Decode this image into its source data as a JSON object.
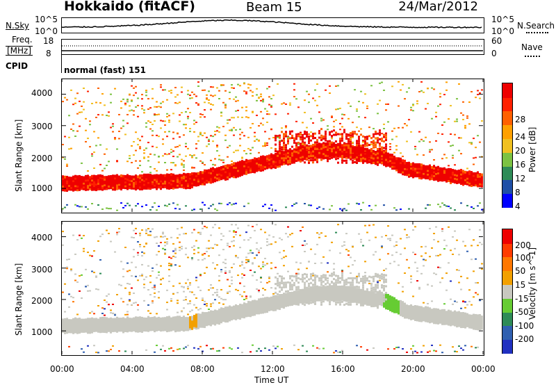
{
  "header": {
    "station": "Hokkaido (fitACF)",
    "beam": "Beam 15",
    "date": "24/Mar/2012"
  },
  "top_strip": {
    "nsky_label": "N.Sky",
    "nsearch_label": "N.Search",
    "nsky_ticks": [
      "10^5",
      "10^0"
    ],
    "nsearch_ticks": [
      "10^5",
      "10^0"
    ],
    "freq_label_1": "Freq.",
    "freq_label_2": "[MHz]",
    "freq_ticks": [
      "18",
      "8"
    ],
    "nave_label": "Nave",
    "nave_ticks": [
      "60",
      "0"
    ],
    "cpid_label": "CPID",
    "cpid_text": "normal (fast) 151"
  },
  "colors": {
    "power_scale": [
      "#0000ff",
      "#1f4fa6",
      "#2e8b57",
      "#7cc242",
      "#f0c020",
      "#ffa000",
      "#ff6000",
      "#ff2000",
      "#ee0000"
    ],
    "velocity_scale": [
      "#2030c0",
      "#3060b0",
      "#2e8b57",
      "#66cc33",
      "#c8c8c0",
      "#f2a000",
      "#ff7700",
      "#ff3b00",
      "#ee0000"
    ]
  },
  "chart_data": [
    {
      "type": "heatmap",
      "name": "power-panel",
      "ylabel": "Slant Range [km]",
      "yticks": [
        "4000",
        "3000",
        "2000",
        "1000"
      ],
      "ylim": [
        250,
        4500
      ],
      "colorbar_label": "Power [dB]",
      "colorbar_ticks": [
        "28",
        "24",
        "20",
        "16",
        "12",
        "8",
        "4"
      ]
    },
    {
      "type": "heatmap",
      "name": "velocity-panel",
      "ylabel": "Slant Range [km]",
      "yticks": [
        "4000",
        "3000",
        "2000",
        "1000"
      ],
      "ylim": [
        250,
        4500
      ],
      "colorbar_label": "Velocity [m s^-1]",
      "colorbar_ticks": [
        "200",
        "100",
        "50",
        "15",
        "-15",
        "-50",
        "-100",
        "-200"
      ]
    }
  ],
  "x_axis": {
    "ticks": [
      "00:00",
      "04:00",
      "08:00",
      "12:00",
      "16:00",
      "20:00",
      "00:00"
    ],
    "label": "Time UT"
  }
}
